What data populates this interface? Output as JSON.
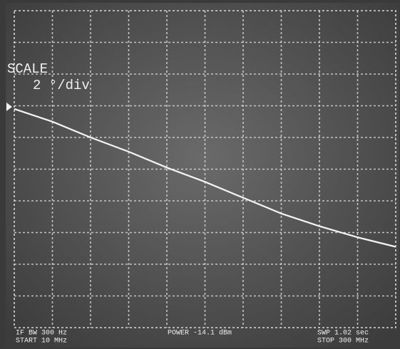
{
  "chart_data": {
    "type": "line",
    "x": [
      10,
      39,
      68,
      97,
      126,
      155,
      184,
      213,
      242,
      271,
      300
    ],
    "values": [
      -0.2,
      -1.0,
      -2.0,
      -2.9,
      -3.9,
      -4.8,
      -5.8,
      -6.8,
      -7.6,
      -8.3,
      -8.9
    ],
    "color": "#f4f4f4",
    "xlim": [
      10,
      300
    ],
    "ylim": [
      -14,
      6
    ],
    "annotations": {
      "scale_title": "SCALE",
      "scale_value": "2 °/div",
      "if_bw": "IF BW  300 Hz",
      "start": "START  10 MHz",
      "power": "POWER -14.1 dBm",
      "sweep": "SWP   1.02 sec",
      "stop": "STOP  300 MHz"
    }
  }
}
